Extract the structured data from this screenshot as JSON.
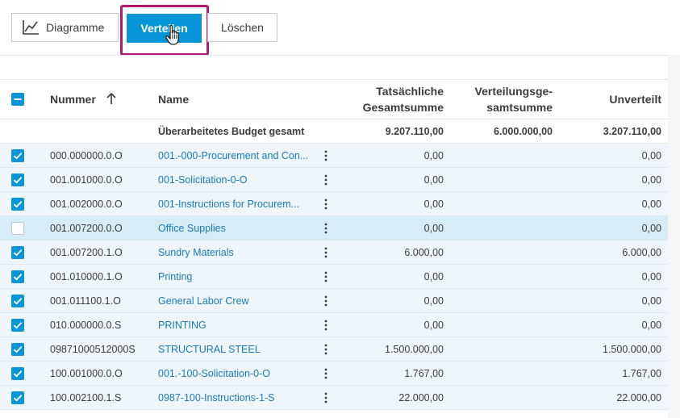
{
  "toolbar": {
    "diagram_label": "Diagramme",
    "distribute_label": "Verteilen",
    "delete_label": "Löschen"
  },
  "colors": {
    "accent": "#0696d7",
    "highlight": "#b5186f",
    "link": "#1a7ab8"
  },
  "table": {
    "headers": {
      "number": "Nummer",
      "name": "Name",
      "actual_total_1": "Tatsächliche",
      "actual_total_2": "Gesamtsumme",
      "distribution_total_1": "Verteilungsge-",
      "distribution_total_2": "samtsumme",
      "undistributed": "Unverteilt"
    },
    "total_row": {
      "label": "Überarbeitetes Budget gesamt",
      "actual": "9.207.110,00",
      "distribution": "6.000.000,00",
      "undistributed": "3.207.110,00"
    },
    "rows": [
      {
        "checked": true,
        "number": "000.000000.0.O",
        "name": "001.-000-Procurement and Con...",
        "actual": "0,00",
        "distribution": "",
        "undistributed": "0,00"
      },
      {
        "checked": true,
        "number": "001.001000.0.O",
        "name": "001-Solicitation-0-O",
        "actual": "0,00",
        "distribution": "",
        "undistributed": "0,00"
      },
      {
        "checked": true,
        "number": "001.002000.0.O",
        "name": "001-Instructions for Procurem...",
        "actual": "0,00",
        "distribution": "",
        "undistributed": "0,00"
      },
      {
        "checked": false,
        "number": "001.007200.0.O",
        "name": "Office Supplies",
        "actual": "0,00",
        "distribution": "",
        "undistributed": "0,00"
      },
      {
        "checked": true,
        "number": "001.007200.1.O",
        "name": "Sundry Materials",
        "actual": "6.000,00",
        "distribution": "",
        "undistributed": "6.000,00"
      },
      {
        "checked": true,
        "number": "001.010000.1.O",
        "name": "Printing",
        "actual": "0,00",
        "distribution": "",
        "undistributed": "0,00"
      },
      {
        "checked": true,
        "number": "001.011100.1.O",
        "name": "General Labor Crew",
        "actual": "0,00",
        "distribution": "",
        "undistributed": "0,00"
      },
      {
        "checked": true,
        "number": "010.000000.0.S",
        "name": "PRINTING",
        "actual": "0,00",
        "distribution": "",
        "undistributed": "0,00"
      },
      {
        "checked": true,
        "number": "09871000512000S",
        "name": "STRUCTURAL STEEL",
        "actual": "1.500.000,00",
        "distribution": "",
        "undistributed": "1.500.000,00"
      },
      {
        "checked": true,
        "number": "100.001000.0.O",
        "name": "001.-100-Solicitation-0-O",
        "actual": "1.767,00",
        "distribution": "",
        "undistributed": "1.767,00"
      },
      {
        "checked": true,
        "number": "100.002100.1.S",
        "name": "0987-100-Instructions-1-S",
        "actual": "22.000,00",
        "distribution": "",
        "undistributed": "22.000,00"
      }
    ]
  }
}
